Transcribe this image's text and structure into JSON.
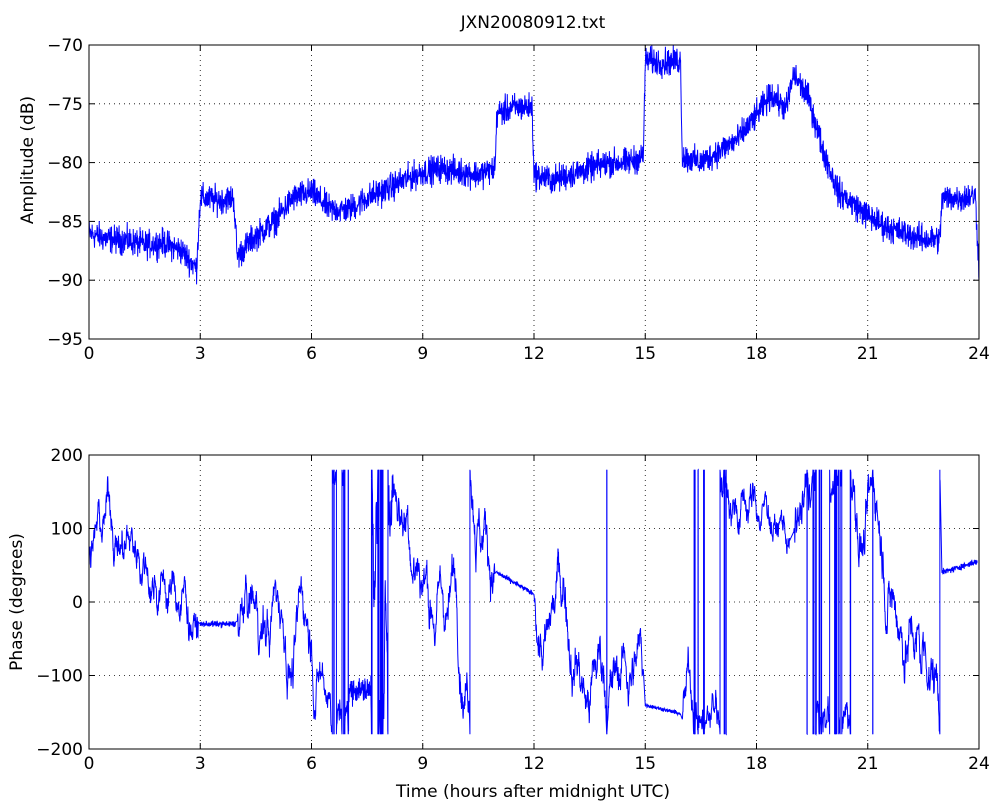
{
  "chart_data": [
    {
      "type": "line",
      "title": "JXN20080912.txt",
      "xlabel": "",
      "ylabel": "Amplitude (dB)",
      "xlim": [
        0,
        24
      ],
      "ylim": [
        -95,
        -70
      ],
      "xticks": [
        "0",
        "3",
        "6",
        "9",
        "12",
        "15",
        "18",
        "21",
        "24"
      ],
      "yticks": [
        "−70",
        "−75",
        "−80",
        "−85",
        "−90",
        "−95"
      ],
      "grid": true,
      "line_color": "#0000ff",
      "noise": 1.1,
      "keypoints": [
        [
          0.0,
          -86.0
        ],
        [
          0.5,
          -86.5
        ],
        [
          1.0,
          -86.6
        ],
        [
          1.5,
          -87.0
        ],
        [
          2.0,
          -86.8
        ],
        [
          2.5,
          -87.5
        ],
        [
          2.9,
          -89.0
        ],
        [
          3.0,
          -83.0
        ],
        [
          3.5,
          -83.2
        ],
        [
          3.9,
          -83.0
        ],
        [
          4.0,
          -88.0
        ],
        [
          4.4,
          -86.5
        ],
        [
          5.0,
          -85.0
        ],
        [
          5.5,
          -83.0
        ],
        [
          6.0,
          -82.5
        ],
        [
          6.5,
          -84.0
        ],
        [
          7.0,
          -84.0
        ],
        [
          7.5,
          -83.0
        ],
        [
          8.0,
          -82.3
        ],
        [
          8.5,
          -81.5
        ],
        [
          9.0,
          -80.8
        ],
        [
          9.5,
          -80.5
        ],
        [
          10.0,
          -80.8
        ],
        [
          10.5,
          -81.0
        ],
        [
          10.95,
          -80.5
        ],
        [
          11.0,
          -75.8
        ],
        [
          11.5,
          -75.3
        ],
        [
          11.95,
          -75.3
        ],
        [
          12.0,
          -81.0
        ],
        [
          12.5,
          -81.5
        ],
        [
          13.0,
          -81.0
        ],
        [
          13.5,
          -80.5
        ],
        [
          14.0,
          -80.0
        ],
        [
          14.5,
          -80.0
        ],
        [
          14.95,
          -79.5
        ],
        [
          15.0,
          -71.3
        ],
        [
          15.5,
          -71.5
        ],
        [
          15.95,
          -71.3
        ],
        [
          16.0,
          -79.5
        ],
        [
          16.5,
          -80.0
        ],
        [
          17.0,
          -79.0
        ],
        [
          17.5,
          -78.0
        ],
        [
          18.0,
          -76.0
        ],
        [
          18.4,
          -74.2
        ],
        [
          18.8,
          -75.5
        ],
        [
          19.0,
          -72.5
        ],
        [
          19.4,
          -74.5
        ],
        [
          19.8,
          -79.0
        ],
        [
          20.2,
          -82.5
        ],
        [
          20.6,
          -83.5
        ],
        [
          21.0,
          -84.5
        ],
        [
          21.5,
          -85.5
        ],
        [
          22.0,
          -86.0
        ],
        [
          22.5,
          -86.5
        ],
        [
          22.95,
          -86.5
        ],
        [
          23.0,
          -83.0
        ],
        [
          23.5,
          -83.0
        ],
        [
          23.9,
          -82.8
        ],
        [
          24.0,
          -89.0
        ]
      ]
    },
    {
      "type": "line",
      "title": "",
      "xlabel": "Time (hours after midnight UTC)",
      "ylabel": "Phase (degrees)",
      "xlim": [
        0,
        24
      ],
      "ylim": [
        -200,
        200
      ],
      "xticks": [
        "0",
        "3",
        "6",
        "9",
        "12",
        "15",
        "18",
        "21",
        "24"
      ],
      "yticks": [
        "200",
        "100",
        "0",
        "−100",
        "−200"
      ],
      "grid": true,
      "line_color": "#0000ff",
      "wrap_range": [
        -180,
        180
      ],
      "segments": [
        {
          "x": [
            0.0,
            2.95
          ],
          "kind": "wrap",
          "rate": 260
        },
        {
          "x": [
            3.0,
            3.95
          ],
          "kind": "flat",
          "level": -30,
          "jitter": 6
        },
        {
          "x": [
            4.0,
            7.0
          ],
          "kind": "wrap",
          "rate": 300
        },
        {
          "x": [
            7.0,
            7.6
          ],
          "kind": "flat",
          "level": -120,
          "jitter": 25
        },
        {
          "x": [
            7.6,
            8.2
          ],
          "kind": "wrap",
          "rate": 900
        },
        {
          "x": [
            8.2,
            10.95
          ],
          "kind": "wrap",
          "rate": 320
        },
        {
          "x": [
            11.0,
            11.95
          ],
          "kind": "ramp",
          "from": 40,
          "to": 12,
          "jitter": 5
        },
        {
          "x": [
            12.0,
            14.95
          ],
          "kind": "wrap",
          "rate": 330
        },
        {
          "x": [
            15.0,
            15.95
          ],
          "kind": "ramp",
          "from": -140,
          "to": -152,
          "jitter": 4
        },
        {
          "x": [
            16.0,
            18.0
          ],
          "kind": "wrap",
          "rate": 280
        },
        {
          "x": [
            18.0,
            18.9
          ],
          "kind": "wrap",
          "rate": 200
        },
        {
          "x": [
            19.0,
            22.95
          ],
          "kind": "wrap",
          "rate": 330
        },
        {
          "x": [
            23.0,
            23.95
          ],
          "kind": "ramp",
          "from": 40,
          "to": 55,
          "jitter": 6
        }
      ]
    }
  ]
}
